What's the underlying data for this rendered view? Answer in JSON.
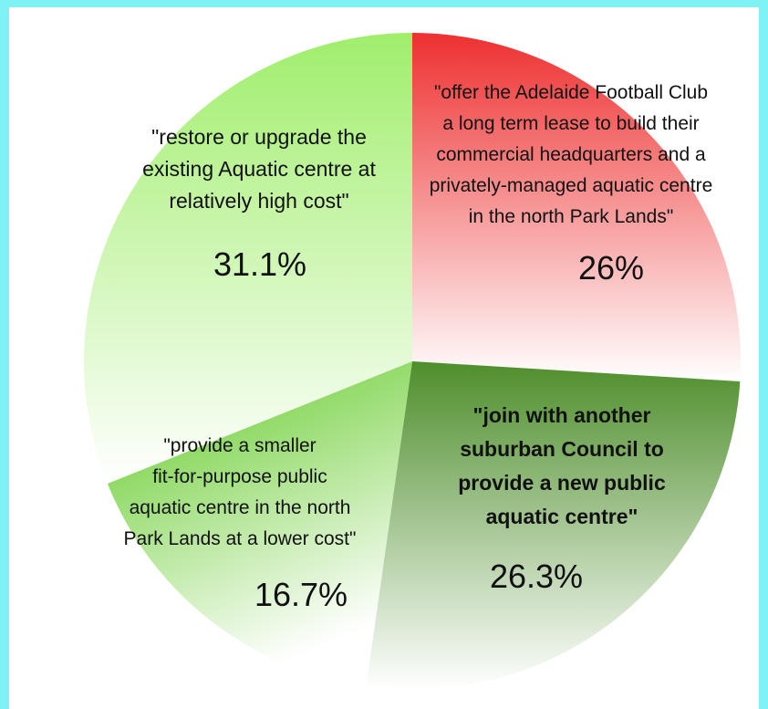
{
  "chart_data": {
    "type": "pie",
    "title": "",
    "slices": [
      {
        "label_lines": [
          "\"offer the Adelaide Football Club",
          "a long term lease to build their",
          "commercial headquarters and a",
          "privately-managed aquatic centre",
          "in the north Park Lands\""
        ],
        "value": 26,
        "value_label": "26%",
        "bold": false,
        "color_start": "#ee3030",
        "color_end": "#ffffff"
      },
      {
        "label_lines": [
          "\"join with another",
          "suburban Council to",
          "provide a new public",
          "aquatic centre\""
        ],
        "value": 26.3,
        "value_label": "26.3%",
        "bold": true,
        "color_start": "#4e8e2c",
        "color_end": "#ffffff"
      },
      {
        "label_lines": [
          "\"provide a smaller",
          "fit-for-purpose public",
          "aquatic centre in the north",
          "Park Lands at a lower cost\""
        ],
        "value": 16.7,
        "value_label": "16.7%",
        "bold": false,
        "color_start": "#5cc81e",
        "color_end": "#ffffff"
      },
      {
        "label_lines": [
          "\"restore or upgrade the",
          "existing Aquatic centre at",
          "relatively high cost\""
        ],
        "value": 31.1,
        "value_label": "31.1%",
        "bold": false,
        "color_start": "#a0ee6c",
        "color_end": "#ffffff"
      }
    ]
  },
  "colors": {
    "page_border": "#7df3f5",
    "background": "#ffffff"
  }
}
